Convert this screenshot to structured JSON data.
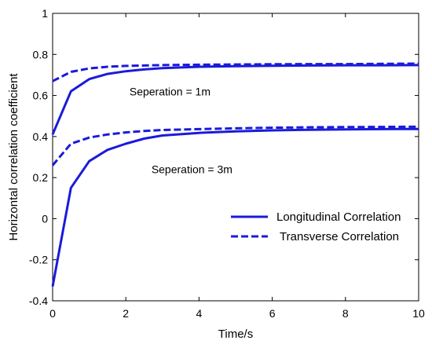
{
  "chart_data": {
    "type": "line",
    "title": "",
    "xlabel": "Time/s",
    "ylabel": "Horizontal correlation coefficient",
    "xlim": [
      0,
      10
    ],
    "ylim": [
      -0.4,
      1
    ],
    "xticks": [
      0,
      2,
      4,
      6,
      8,
      10
    ],
    "yticks": [
      -0.4,
      -0.2,
      0,
      0.2,
      0.4,
      0.6,
      0.8,
      1
    ],
    "xtick_labels": [
      "0",
      "2",
      "4",
      "6",
      "8",
      "10"
    ],
    "ytick_labels": [
      "-0.4",
      "-0.2",
      "0",
      "0.2",
      "0.4",
      "0.6",
      "0.8",
      "1"
    ],
    "grid": false,
    "legend_placement": "lower-right",
    "legend": [
      "Longitudinal Correlation",
      "Transverse Correlation"
    ],
    "line_color": "#1a1adb",
    "series": [
      {
        "name": "Longitudinal Correlation",
        "group": "Seperation = 1m",
        "style": "solid",
        "x": [
          0,
          0.5,
          1,
          1.5,
          2,
          2.5,
          3,
          4,
          5,
          6,
          7,
          8,
          9,
          10
        ],
        "y": [
          0.41,
          0.62,
          0.68,
          0.705,
          0.718,
          0.727,
          0.733,
          0.74,
          0.743,
          0.745,
          0.746,
          0.747,
          0.747,
          0.748
        ]
      },
      {
        "name": "Transverse Correlation",
        "group": "Seperation = 1m",
        "style": "dashed",
        "x": [
          0,
          0.5,
          1,
          1.5,
          2,
          2.5,
          3,
          4,
          5,
          6,
          7,
          8,
          9,
          10
        ],
        "y": [
          0.67,
          0.715,
          0.732,
          0.74,
          0.744,
          0.746,
          0.748,
          0.75,
          0.751,
          0.752,
          0.753,
          0.753,
          0.754,
          0.755
        ]
      },
      {
        "name": "Longitudinal Correlation",
        "group": "Seperation = 3m",
        "style": "solid",
        "x": [
          0,
          0.5,
          1,
          1.5,
          2,
          2.5,
          3,
          4,
          5,
          6,
          7,
          8,
          9,
          10
        ],
        "y": [
          -0.33,
          0.15,
          0.28,
          0.335,
          0.365,
          0.39,
          0.405,
          0.418,
          0.425,
          0.43,
          0.433,
          0.435,
          0.436,
          0.437
        ]
      },
      {
        "name": "Transverse Correlation",
        "group": "Seperation = 3m",
        "style": "dashed",
        "x": [
          0,
          0.5,
          1,
          1.5,
          2,
          2.5,
          3,
          4,
          5,
          6,
          7,
          8,
          9,
          10
        ],
        "y": [
          0.26,
          0.365,
          0.395,
          0.41,
          0.42,
          0.427,
          0.432,
          0.436,
          0.44,
          0.443,
          0.445,
          0.446,
          0.447,
          0.448
        ]
      }
    ],
    "annotations": [
      {
        "text": "Seperation = 1m",
        "x": 2.1,
        "y": 0.62
      },
      {
        "text": "Seperation = 3m",
        "x": 2.7,
        "y": 0.24
      }
    ]
  }
}
